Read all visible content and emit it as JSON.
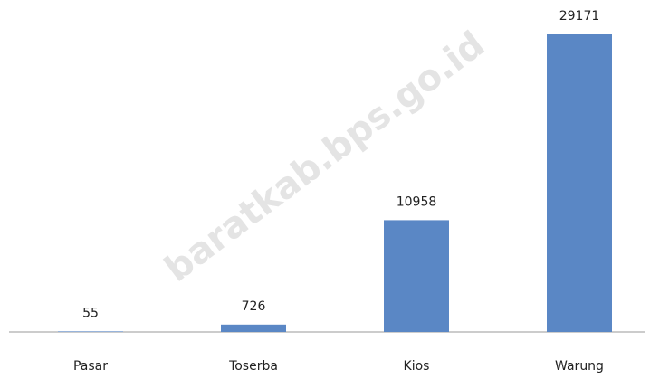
{
  "chart_data": {
    "type": "bar",
    "categories": [
      "Pasar",
      "Toserba",
      "Kios",
      "Warung"
    ],
    "values": [
      55,
      726,
      10958,
      29171
    ],
    "color": "#5a87c5"
  },
  "watermark": "baratkab.bps.go.id"
}
